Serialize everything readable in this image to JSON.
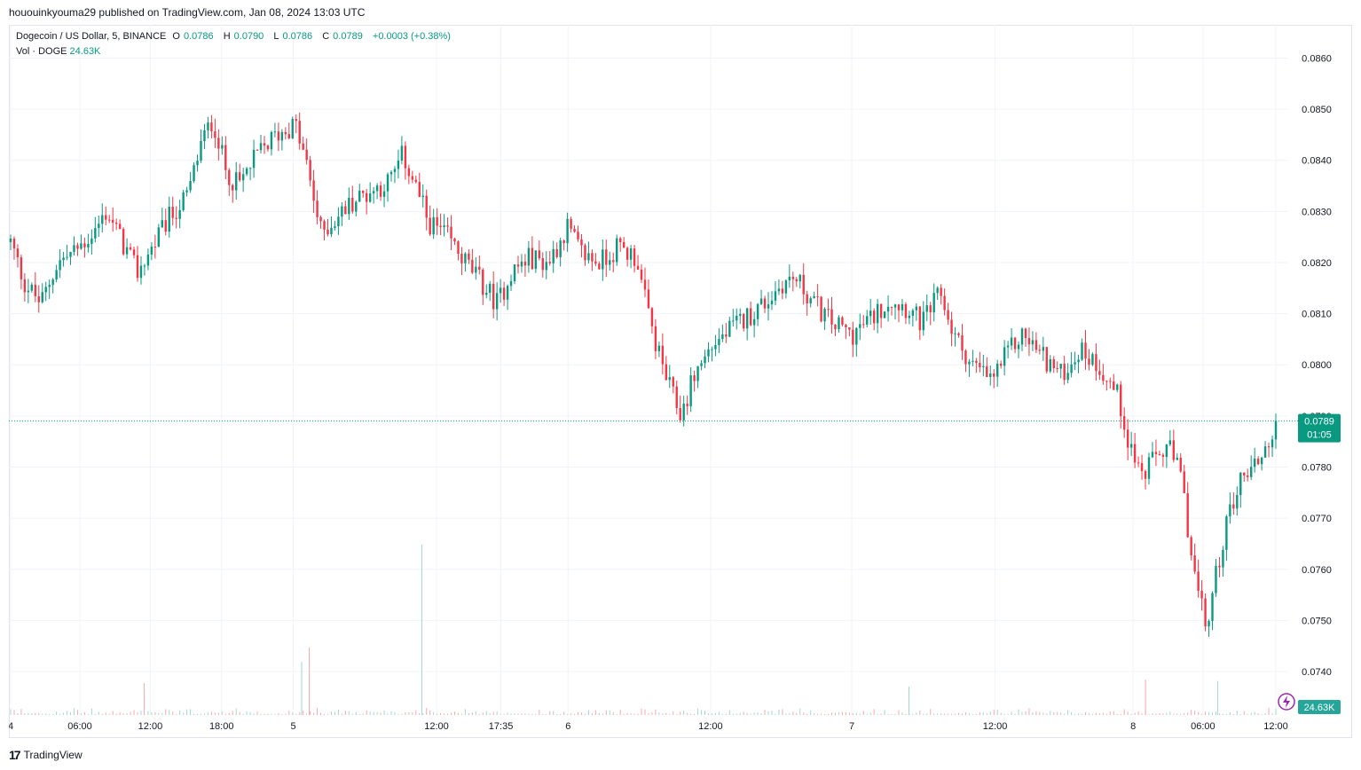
{
  "publish_line": "hououinkyouma29 published on TradingView.com, Jan 08, 2024 13:03 UTC",
  "legend": {
    "symbol": "Dogecoin / US Dollar, 5, BINANCE",
    "open_label": "O",
    "open": "0.0786",
    "high_label": "H",
    "high": "0.0790",
    "low_label": "L",
    "low": "0.0786",
    "close_label": "C",
    "close": "0.0789",
    "change": "+0.0003 (+0.38%)",
    "vol_label": "Vol · DOGE",
    "vol_value": "24.63K"
  },
  "price_tag": {
    "price": "0.0789",
    "countdown": "01:05"
  },
  "volume_tag": "24.63K",
  "brand": {
    "logo": "17",
    "name": "TradingView"
  },
  "colors": {
    "up": "#089981",
    "down": "#f23645",
    "grid": "#f0f3fa",
    "accent": "#9c27b0"
  },
  "chart_data": {
    "type": "candlestick",
    "symbol": "DOGEUSDT",
    "interval": "5",
    "y_ticks": [
      "0.0740",
      "0.0750",
      "0.0760",
      "0.0770",
      "0.0780",
      "0.0790",
      "0.0800",
      "0.0810",
      "0.0820",
      "0.0830",
      "0.0840",
      "0.0850",
      "0.0860"
    ],
    "ylim": [
      0.07315,
      0.08665
    ],
    "x_ticks": [
      {
        "label": "4",
        "t": 0
      },
      {
        "label": "06:00",
        "t": 0.0547
      },
      {
        "label": "12:00",
        "t": 0.1104
      },
      {
        "label": "18:00",
        "t": 0.1667
      },
      {
        "label": "5",
        "t": 0.2234
      },
      {
        "label": "12:00",
        "t": 0.3366
      },
      {
        "label": "17:35",
        "t": 0.3875
      },
      {
        "label": "6",
        "t": 0.4406
      },
      {
        "label": "12:00",
        "t": 0.5532
      },
      {
        "label": "7",
        "t": 0.6648
      },
      {
        "label": "12:00",
        "t": 0.7781
      },
      {
        "label": "8",
        "t": 0.8872
      },
      {
        "label": "06:00",
        "t": 0.9424
      },
      {
        "label": "12:00",
        "t": 1.0
      }
    ],
    "last_price": 0.0789,
    "price_path": [
      [
        0,
        0.0824
      ],
      [
        0.011,
        0.0816
      ],
      [
        0.024,
        0.0812
      ],
      [
        0.037,
        0.082
      ],
      [
        0.05,
        0.0822
      ],
      [
        0.066,
        0.0826
      ],
      [
        0.076,
        0.083
      ],
      [
        0.09,
        0.0823
      ],
      [
        0.1,
        0.0818
      ],
      [
        0.112,
        0.0823
      ],
      [
        0.126,
        0.0829
      ],
      [
        0.14,
        0.0833
      ],
      [
        0.15,
        0.0843
      ],
      [
        0.16,
        0.0848
      ],
      [
        0.17,
        0.0838
      ],
      [
        0.18,
        0.0835
      ],
      [
        0.195,
        0.0841
      ],
      [
        0.21,
        0.0845
      ],
      [
        0.225,
        0.0847
      ],
      [
        0.235,
        0.0838
      ],
      [
        0.245,
        0.0826
      ],
      [
        0.255,
        0.0828
      ],
      [
        0.27,
        0.0832
      ],
      [
        0.285,
        0.0834
      ],
      [
        0.3,
        0.0836
      ],
      [
        0.31,
        0.0841
      ],
      [
        0.32,
        0.0835
      ],
      [
        0.33,
        0.0828
      ],
      [
        0.345,
        0.0825
      ],
      [
        0.36,
        0.082
      ],
      [
        0.375,
        0.0815
      ],
      [
        0.385,
        0.0812
      ],
      [
        0.395,
        0.0818
      ],
      [
        0.41,
        0.0821
      ],
      [
        0.425,
        0.082
      ],
      [
        0.44,
        0.0827
      ],
      [
        0.45,
        0.0822
      ],
      [
        0.465,
        0.082
      ],
      [
        0.48,
        0.0823
      ],
      [
        0.495,
        0.0821
      ],
      [
        0.5,
        0.0814
      ],
      [
        0.51,
        0.0804
      ],
      [
        0.52,
        0.0796
      ],
      [
        0.53,
        0.079
      ],
      [
        0.54,
        0.0798
      ],
      [
        0.555,
        0.0804
      ],
      [
        0.57,
        0.0807
      ],
      [
        0.585,
        0.081
      ],
      [
        0.6,
        0.0813
      ],
      [
        0.61,
        0.0816
      ],
      [
        0.62,
        0.0817
      ],
      [
        0.635,
        0.0812
      ],
      [
        0.65,
        0.0808
      ],
      [
        0.665,
        0.0806
      ],
      [
        0.68,
        0.0809
      ],
      [
        0.695,
        0.0813
      ],
      [
        0.71,
        0.0811
      ],
      [
        0.72,
        0.0808
      ],
      [
        0.735,
        0.0814
      ],
      [
        0.745,
        0.0806
      ],
      [
        0.76,
        0.08
      ],
      [
        0.775,
        0.0797
      ],
      [
        0.79,
        0.0803
      ],
      [
        0.8,
        0.0806
      ],
      [
        0.815,
        0.0802
      ],
      [
        0.83,
        0.0798
      ],
      [
        0.845,
        0.0803
      ],
      [
        0.86,
        0.08
      ],
      [
        0.875,
        0.0794
      ],
      [
        0.885,
        0.0784
      ],
      [
        0.895,
        0.0778
      ],
      [
        0.905,
        0.0782
      ],
      [
        0.915,
        0.0784
      ],
      [
        0.925,
        0.0778
      ],
      [
        0.935,
        0.076
      ],
      [
        0.945,
        0.0748
      ],
      [
        0.955,
        0.0762
      ],
      [
        0.965,
        0.0773
      ],
      [
        0.975,
        0.0779
      ],
      [
        0.985,
        0.0781
      ],
      [
        0.995,
        0.0785
      ],
      [
        1.0,
        0.0789
      ]
    ],
    "volume_spikes": [
      {
        "t": 0.1055,
        "h": 0.45,
        "dir": "down"
      },
      {
        "t": 0.23,
        "h": 0.75,
        "dir": "up"
      },
      {
        "t": 0.236,
        "h": 0.95,
        "dir": "down"
      },
      {
        "t": 0.325,
        "h": 2.4,
        "dir": "up"
      },
      {
        "t": 0.71,
        "h": 0.4,
        "dir": "up"
      },
      {
        "t": 0.897,
        "h": 0.5,
        "dir": "down"
      },
      {
        "t": 0.954,
        "h": 0.48,
        "dir": "up"
      }
    ]
  }
}
